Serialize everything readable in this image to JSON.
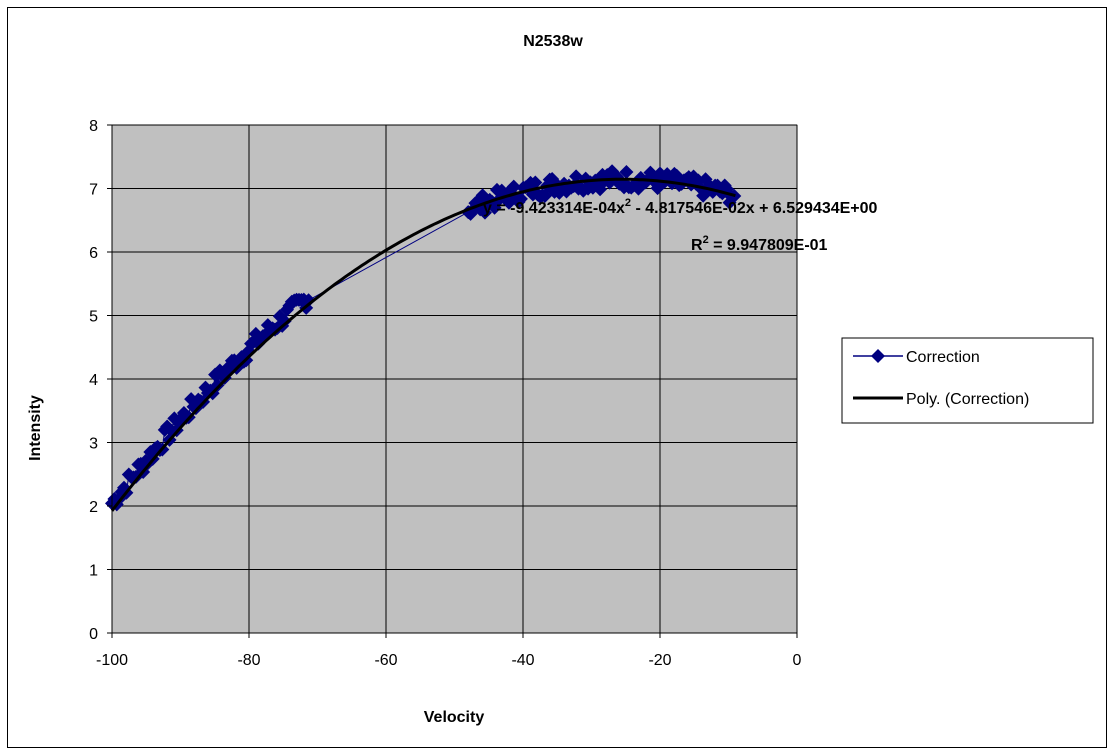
{
  "chart_data": {
    "type": "scatter",
    "title": "N2538w",
    "xlabel": "Velocity",
    "ylabel": "Intensity",
    "xlim": [
      -100,
      0
    ],
    "ylim": [
      0,
      8
    ],
    "xticks": [
      -100,
      -80,
      -60,
      -40,
      -20,
      0
    ],
    "yticks": [
      0,
      1,
      2,
      3,
      4,
      5,
      6,
      7,
      8
    ],
    "grid": true,
    "plot_background": "#c0c0c0",
    "legend_position": "right",
    "series": [
      {
        "name": "Correction",
        "color": "#000080",
        "marker": "diamond",
        "segments": [
          {
            "x_range": [
              -100,
              -71
            ],
            "noise": 0.15
          },
          {
            "x_range": [
              -48,
              -9
            ],
            "noise": 0.15
          }
        ]
      },
      {
        "name": "Poly. (Correction)",
        "color": "#000000",
        "type": "polynomial-trendline",
        "coefficients": {
          "a": -0.0009423314,
          "b": -0.04817546,
          "c": 6.529434
        },
        "x_range": [
          -100,
          -9
        ]
      }
    ],
    "trendline_equation": "y = -9.423314E-04x",
    "trendline_equation_sup": "2",
    "trendline_equation_rest": " - 4.817546E-02x + 6.529434E+00",
    "r_squared_prefix": "R",
    "r_squared_sup": "2",
    "r_squared_rest": " = 9.947809E-01"
  },
  "legend": {
    "items": [
      {
        "label": "Correction"
      },
      {
        "label": "Poly. (Correction)"
      }
    ]
  }
}
